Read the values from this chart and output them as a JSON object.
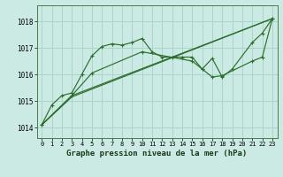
{
  "bg_color": "#cceae4",
  "grid_color": "#aad4cc",
  "line_color": "#2d6e2d",
  "title": "Graphe pression niveau de la mer (hPa)",
  "xlim": [
    -0.5,
    23.5
  ],
  "ylim": [
    1013.6,
    1018.6
  ],
  "yticks": [
    1014,
    1015,
    1016,
    1017,
    1018
  ],
  "xticks": [
    0,
    1,
    2,
    3,
    4,
    5,
    6,
    7,
    8,
    9,
    10,
    11,
    12,
    13,
    14,
    15,
    16,
    17,
    18,
    19,
    20,
    21,
    22,
    23
  ],
  "series0_x": [
    0,
    1,
    2,
    3,
    4,
    5,
    6,
    7,
    8,
    9,
    10,
    11,
    12,
    13,
    14,
    15,
    16,
    17,
    18,
    19,
    21,
    22,
    23
  ],
  "series0_y": [
    1014.1,
    1014.85,
    1015.2,
    1015.3,
    1016.0,
    1016.7,
    1017.05,
    1017.15,
    1017.1,
    1017.2,
    1017.35,
    1016.85,
    1016.65,
    1016.65,
    1016.65,
    1016.65,
    1016.2,
    1016.6,
    1015.9,
    1016.2,
    1017.2,
    1017.55,
    1018.1
  ],
  "series1_x": [
    0,
    3,
    23
  ],
  "series1_y": [
    1014.1,
    1015.15,
    1018.1
  ],
  "series2_x": [
    0,
    3,
    23
  ],
  "series2_y": [
    1014.1,
    1015.2,
    1018.1
  ],
  "series3_x": [
    0,
    3,
    5,
    10,
    15,
    16,
    17,
    18,
    21,
    22,
    23
  ],
  "series3_y": [
    1014.1,
    1015.2,
    1016.05,
    1016.85,
    1016.5,
    1016.2,
    1015.9,
    1015.95,
    1016.5,
    1016.65,
    1018.1
  ]
}
